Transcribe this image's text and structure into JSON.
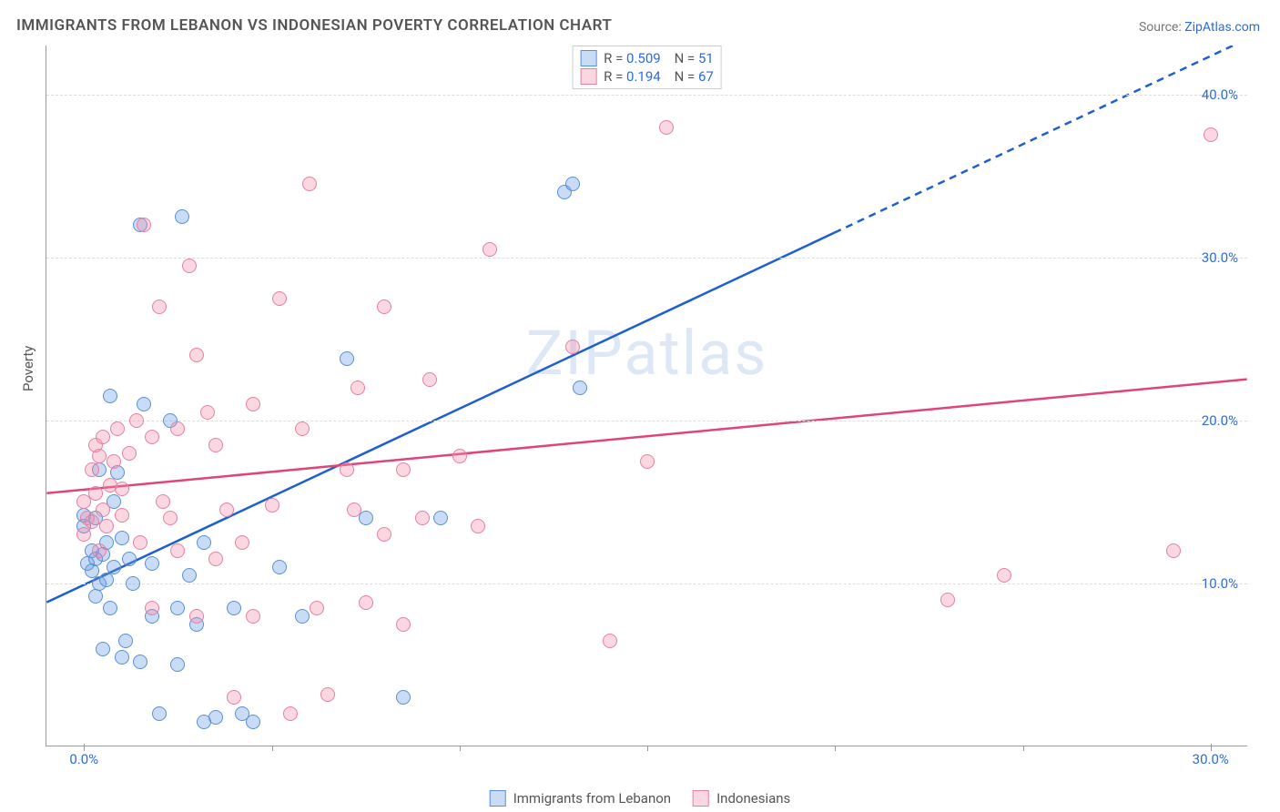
{
  "title": "IMMIGRANTS FROM LEBANON VS INDONESIAN POVERTY CORRELATION CHART",
  "source_prefix": "Source: ",
  "source_link": "ZipAtlas.com",
  "watermark": "ZIPatlas",
  "axis": {
    "y_title": "Poverty",
    "xlim": [
      -1,
      31
    ],
    "ylim": [
      0,
      43
    ],
    "x_ticks_major": [
      0,
      30
    ],
    "x_ticks_minor": [
      5,
      10,
      15,
      20,
      25
    ],
    "x_tick_labels": [
      "0.0%",
      "30.0%"
    ],
    "y_ticks": [
      10,
      20,
      30,
      40
    ],
    "y_tick_labels": [
      "10.0%",
      "20.0%",
      "30.0%",
      "40.0%"
    ],
    "grid_color": "#dddddd",
    "axis_color": "#999999",
    "tick_label_color": "#2b6cdf",
    "axis_title_color": "#555555"
  },
  "series": [
    {
      "id": "lebanon",
      "label": "Immigrants from Lebanon",
      "fill": "rgba(100,155,230,0.35)",
      "stroke": "#5a8fd6",
      "trend_color": "#1f5fd0",
      "trend_width": 2.5,
      "marker_radius": 8,
      "R": "0.509",
      "N": "51",
      "trend": {
        "x1": -1,
        "y1": 8.8,
        "x2": 20,
        "y2": 31.5,
        "dash_x2": 31,
        "dash_y2": 43.4
      },
      "points": [
        [
          0.0,
          13.5
        ],
        [
          0.0,
          14.2
        ],
        [
          0.1,
          11.2
        ],
        [
          0.2,
          10.8
        ],
        [
          0.2,
          12.0
        ],
        [
          0.3,
          11.5
        ],
        [
          0.3,
          9.2
        ],
        [
          0.4,
          10.0
        ],
        [
          0.4,
          17.0
        ],
        [
          0.5,
          11.8
        ],
        [
          0.5,
          6.0
        ],
        [
          0.6,
          12.5
        ],
        [
          0.6,
          10.2
        ],
        [
          0.7,
          8.5
        ],
        [
          0.7,
          21.5
        ],
        [
          0.8,
          11.0
        ],
        [
          0.8,
          15.0
        ],
        [
          0.9,
          16.8
        ],
        [
          1.0,
          5.5
        ],
        [
          1.0,
          12.8
        ],
        [
          1.2,
          11.5
        ],
        [
          1.3,
          10.0
        ],
        [
          1.5,
          5.2
        ],
        [
          1.5,
          32.0
        ],
        [
          1.6,
          21.0
        ],
        [
          1.8,
          8.0
        ],
        [
          1.8,
          11.2
        ],
        [
          2.0,
          2.0
        ],
        [
          2.3,
          20.0
        ],
        [
          2.5,
          8.5
        ],
        [
          2.5,
          5.0
        ],
        [
          2.6,
          32.5
        ],
        [
          2.8,
          10.5
        ],
        [
          3.0,
          7.5
        ],
        [
          3.2,
          1.5
        ],
        [
          3.2,
          12.5
        ],
        [
          3.5,
          1.8
        ],
        [
          4.0,
          8.5
        ],
        [
          4.2,
          2.0
        ],
        [
          4.5,
          1.5
        ],
        [
          5.2,
          11.0
        ],
        [
          5.8,
          8.0
        ],
        [
          7.0,
          23.8
        ],
        [
          7.5,
          14.0
        ],
        [
          8.5,
          3.0
        ],
        [
          9.5,
          14.0
        ],
        [
          12.8,
          34.0
        ],
        [
          13.0,
          34.5
        ],
        [
          13.2,
          22.0
        ],
        [
          0.3,
          14.0
        ],
        [
          1.1,
          6.5
        ]
      ]
    },
    {
      "id": "indonesians",
      "label": "Indonesians",
      "fill": "rgba(240,140,170,0.35)",
      "stroke": "#e77fa3",
      "trend_color": "#e04578",
      "trend_width": 2.5,
      "marker_radius": 8,
      "R": "0.194",
      "N": "67",
      "trend": {
        "x1": -1,
        "y1": 15.5,
        "x2": 31,
        "y2": 22.5
      },
      "points": [
        [
          0.0,
          15.0
        ],
        [
          0.0,
          13.0
        ],
        [
          0.1,
          14.0
        ],
        [
          0.2,
          17.0
        ],
        [
          0.3,
          18.5
        ],
        [
          0.3,
          15.5
        ],
        [
          0.4,
          12.0
        ],
        [
          0.5,
          14.5
        ],
        [
          0.5,
          19.0
        ],
        [
          0.6,
          13.5
        ],
        [
          0.7,
          16.0
        ],
        [
          0.8,
          17.5
        ],
        [
          0.9,
          19.5
        ],
        [
          1.0,
          14.2
        ],
        [
          1.0,
          15.8
        ],
        [
          1.2,
          18.0
        ],
        [
          1.4,
          20.0
        ],
        [
          1.5,
          12.5
        ],
        [
          1.8,
          8.5
        ],
        [
          1.8,
          19.0
        ],
        [
          2.0,
          27.0
        ],
        [
          2.3,
          14.0
        ],
        [
          2.5,
          19.5
        ],
        [
          2.5,
          12.0
        ],
        [
          2.8,
          29.5
        ],
        [
          3.0,
          8.0
        ],
        [
          3.0,
          24.0
        ],
        [
          3.3,
          20.5
        ],
        [
          3.5,
          11.5
        ],
        [
          3.5,
          18.5
        ],
        [
          4.0,
          3.0
        ],
        [
          4.2,
          12.5
        ],
        [
          4.5,
          8.0
        ],
        [
          4.5,
          21.0
        ],
        [
          5.0,
          14.8
        ],
        [
          5.2,
          27.5
        ],
        [
          5.5,
          2.0
        ],
        [
          5.8,
          19.5
        ],
        [
          6.0,
          34.5
        ],
        [
          6.2,
          8.5
        ],
        [
          6.5,
          3.2
        ],
        [
          7.0,
          17.0
        ],
        [
          7.2,
          14.5
        ],
        [
          7.3,
          22.0
        ],
        [
          7.5,
          8.8
        ],
        [
          8.0,
          13.0
        ],
        [
          8.0,
          27.0
        ],
        [
          8.5,
          17.0
        ],
        [
          8.5,
          7.5
        ],
        [
          9.0,
          14.0
        ],
        [
          9.2,
          22.5
        ],
        [
          10.0,
          17.8
        ],
        [
          10.5,
          13.5
        ],
        [
          10.8,
          30.5
        ],
        [
          13.0,
          24.5
        ],
        [
          14.0,
          6.5
        ],
        [
          15.0,
          17.5
        ],
        [
          15.5,
          38.0
        ],
        [
          23.0,
          9.0
        ],
        [
          24.5,
          10.5
        ],
        [
          29.0,
          12.0
        ],
        [
          30.0,
          37.5
        ],
        [
          1.6,
          32.0
        ],
        [
          2.1,
          15.0
        ],
        [
          0.2,
          13.8
        ],
        [
          0.4,
          17.8
        ],
        [
          3.8,
          14.5
        ]
      ]
    }
  ],
  "legend_top": {
    "R_label": "R = ",
    "N_label": "N = "
  }
}
